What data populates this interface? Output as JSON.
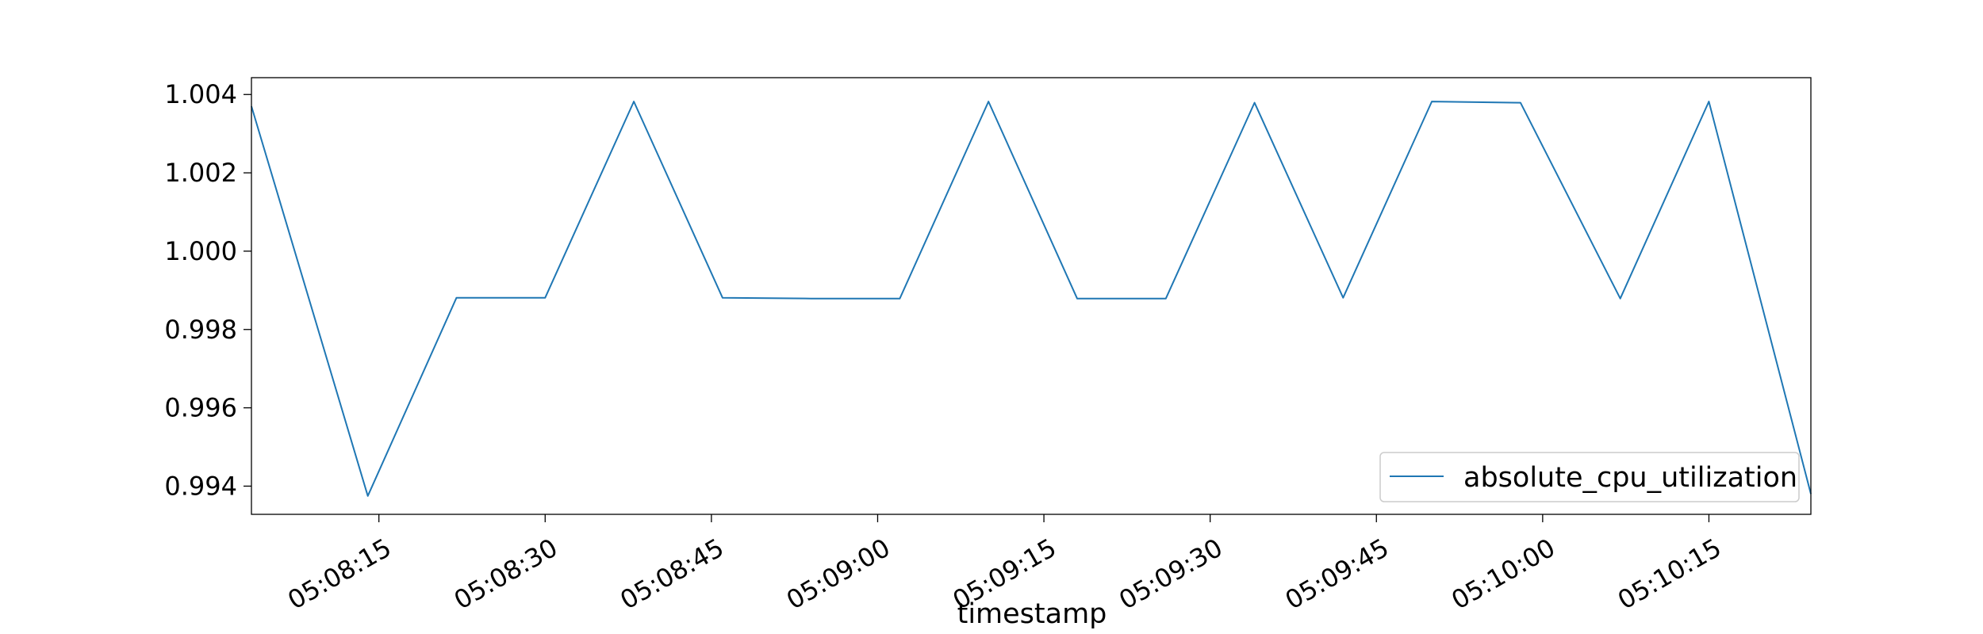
{
  "chart_data": {
    "type": "line",
    "title": "",
    "xlabel": "timestamp",
    "ylabel": "",
    "x_tick_labels": [
      "05:08:15",
      "05:08:30",
      "05:08:45",
      "05:09:00",
      "05:09:15",
      "05:09:30",
      "05:09:45",
      "05:10:00",
      "05:10:15"
    ],
    "x_tick_seconds": [
      15,
      30,
      45,
      60,
      75,
      90,
      105,
      120,
      135
    ],
    "x_range_seconds": [
      3.5,
      144.2
    ],
    "y_tick_labels": [
      "0.994",
      "0.996",
      "0.998",
      "1.000",
      "1.002",
      "1.004"
    ],
    "y_ticks": [
      0.994,
      0.996,
      0.998,
      1.0,
      1.002,
      1.004
    ],
    "ylim": [
      0.99328,
      1.00443
    ],
    "legend": {
      "position": "lower right",
      "entries": [
        "absolute_cpu_utilization"
      ]
    },
    "grid": false,
    "series": [
      {
        "name": "absolute_cpu_utilization",
        "color": "#1f77b4",
        "x_seconds": [
          3.5,
          14,
          22,
          30,
          38,
          46,
          54,
          62,
          70,
          78,
          86,
          94,
          102,
          110,
          118,
          127,
          135,
          144.2
        ],
        "values": [
          1.0037,
          0.99375,
          0.99881,
          0.99881,
          1.00382,
          0.99881,
          0.99879,
          0.99879,
          1.00382,
          0.99879,
          0.99879,
          1.00379,
          0.99881,
          1.00382,
          1.00379,
          0.99879,
          1.00382,
          0.9938
        ]
      }
    ]
  }
}
